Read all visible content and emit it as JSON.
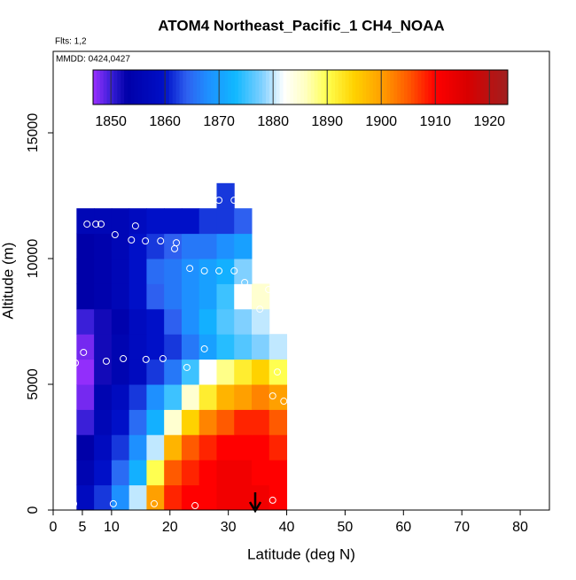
{
  "chart_data": {
    "type": "curtain",
    "title": "ATOM4 Northeast_Pacific_1 CH4_NOAA",
    "subtitle": "Flts: 1,2",
    "annotation": "MMDD: 0424,0427",
    "x_label": "Latitude (deg N)",
    "y_label": "Altitude (m)",
    "xlim": [
      0,
      85
    ],
    "xticks": [
      0,
      5,
      10,
      20,
      30,
      40,
      50,
      60,
      70,
      80
    ],
    "ylim": [
      0,
      18240
    ],
    "yticks": [
      0,
      5000,
      10000,
      15000
    ],
    "x_edges": [
      4,
      7,
      10,
      13,
      16,
      19,
      22,
      25,
      28,
      31,
      34,
      37,
      40
    ],
    "y_edges": [
      0,
      1000,
      2000,
      3000,
      4000,
      5000,
      6000,
      7000,
      8000,
      9000,
      10000,
      11000,
      12000,
      13000
    ],
    "values": [
      [
        1858,
        1862,
        1868,
        1880,
        1900,
        1908,
        1910,
        1910,
        1912,
        1912,
        1912,
        1910
      ],
      [
        1855,
        1860,
        1865,
        1872,
        1890,
        1905,
        1908,
        1910,
        1912,
        1912,
        1910,
        1910
      ],
      [
        1853,
        1858,
        1862,
        1868,
        1880,
        1898,
        1905,
        1908,
        1910,
        1910,
        1910,
        1908
      ],
      [
        1850,
        1856,
        1860,
        1865,
        1872,
        1885,
        1895,
        1902,
        1905,
        1908,
        1908,
        1905
      ],
      [
        1848,
        1855,
        1858,
        1862,
        1868,
        1875,
        1885,
        1892,
        1898,
        1900,
        1902,
        1900
      ],
      [
        1847,
        1852,
        1855,
        1858,
        1862,
        1866,
        1875,
        1882,
        1888,
        1892,
        1895,
        1890
      ],
      [
        1848,
        1852,
        1855,
        1858,
        1860,
        1862,
        1866,
        1870,
        1874,
        1876,
        1878,
        1880
      ],
      [
        1850,
        1852,
        1854,
        1858,
        1860,
        1864,
        1868,
        1872,
        1876,
        1878,
        1880,
        null
      ],
      [
        1853,
        1854,
        1856,
        1860,
        1864,
        1866,
        1868,
        1870,
        1875,
        1882,
        1885,
        null
      ],
      [
        1853,
        1854,
        1856,
        1860,
        1865,
        1866,
        1868,
        1870,
        1872,
        1878,
        null,
        null
      ],
      [
        1853,
        1854,
        1856,
        1860,
        1862,
        1864,
        1866,
        1866,
        1868,
        1870,
        null,
        null
      ],
      [
        1856,
        1856,
        1856,
        1858,
        1860,
        1860,
        1860,
        1862,
        1862,
        1864,
        null,
        null
      ],
      [
        null,
        null,
        null,
        null,
        null,
        null,
        null,
        null,
        1862,
        null,
        null,
        null
      ]
    ],
    "points": {
      "x": [
        3.5,
        10.3,
        17.3,
        24.3,
        37.6,
        3.8,
        5.2,
        9.1,
        12,
        15.9,
        18.8,
        22.9,
        25.9,
        37.6,
        38.4,
        39.5,
        5.8,
        7.3,
        8.2,
        10.6,
        14.1,
        13.4,
        15.8,
        18.4,
        21.1,
        20.8,
        23.4,
        25.9,
        28.4,
        31,
        32.8,
        36.9,
        35.4,
        28.4,
        31
      ],
      "y": [
        250,
        250,
        250,
        175,
        390,
        5850,
        6270,
        5920,
        6020,
        5990,
        6020,
        5670,
        6410,
        4540,
        5490,
        4330,
        11370,
        11370,
        11370,
        10950,
        11300,
        10740,
        10700,
        10700,
        10630,
        10390,
        9610,
        9510,
        9510,
        9510,
        9050,
        8770,
        7990,
        12320,
        12320
      ]
    },
    "clim": [
      1846.7,
      1923.4
    ],
    "cticks": [
      1850,
      1860,
      1870,
      1880,
      1890,
      1900,
      1910,
      1920
    ],
    "colorscale": [
      [
        1846.7,
        "#9b30ff"
      ],
      [
        1850,
        "#3a1fd8"
      ],
      [
        1853,
        "#0000a8"
      ],
      [
        1860,
        "#0010c8"
      ],
      [
        1864,
        "#2e60f0"
      ],
      [
        1868,
        "#1e90ff"
      ],
      [
        1873,
        "#10b8ff"
      ],
      [
        1878,
        "#80d0ff"
      ],
      [
        1882,
        "#ffffff"
      ],
      [
        1886,
        "#ffffc0"
      ],
      [
        1890,
        "#ffff50"
      ],
      [
        1895,
        "#ffd200"
      ],
      [
        1900,
        "#ffa000"
      ],
      [
        1905,
        "#ff5a00"
      ],
      [
        1910,
        "#ff0000"
      ],
      [
        1916,
        "#d80000"
      ],
      [
        1923.4,
        "#a02020"
      ]
    ]
  }
}
